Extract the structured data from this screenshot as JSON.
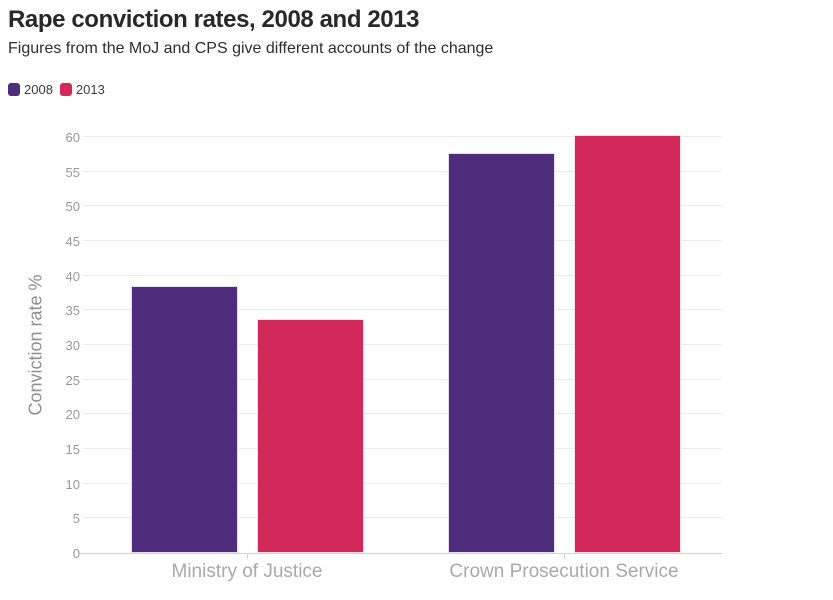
{
  "header": {
    "title": "Rape conviction rates, 2008 and 2013",
    "subtitle": "Figures from the MoJ and CPS give different accounts of the change"
  },
  "legend": {
    "position": "top-left",
    "items": [
      {
        "label": "2008",
        "color": "#4f2c7c"
      },
      {
        "label": "2013",
        "color": "#d3295a"
      }
    ]
  },
  "chart_data": {
    "type": "bar",
    "title": "Rape conviction rates, 2008 and 2013",
    "subtitle": "Figures from the MoJ and CPS give different accounts of the change",
    "categories": [
      "Ministry of Justice",
      "Crown Prosecution Service"
    ],
    "series": [
      {
        "name": "2008",
        "color": "#4f2c7c",
        "values": [
          38.5,
          57.7
        ]
      },
      {
        "name": "2013",
        "color": "#d3295a",
        "values": [
          33.8,
          60.3
        ]
      }
    ],
    "xlabel": "",
    "ylabel": "Conviction rate %",
    "ylim": [
      0,
      60
    ],
    "yticks": [
      0,
      5,
      10,
      15,
      20,
      25,
      30,
      35,
      40,
      45,
      50,
      55,
      60
    ],
    "grid": true,
    "legend_position": "top-left",
    "background": "#ffffff"
  },
  "colors": {
    "purple_2008": "#4f2c7c",
    "pink_2013": "#d3295a",
    "gridline": "#ececec",
    "axis_line": "#d2d2d2",
    "tick_label": "#9a9a9a",
    "category_label": "#a9a9a9",
    "axis_title": "#8f8f8f",
    "title_text": "#282828",
    "subtitle_text": "#2e2e2e"
  }
}
